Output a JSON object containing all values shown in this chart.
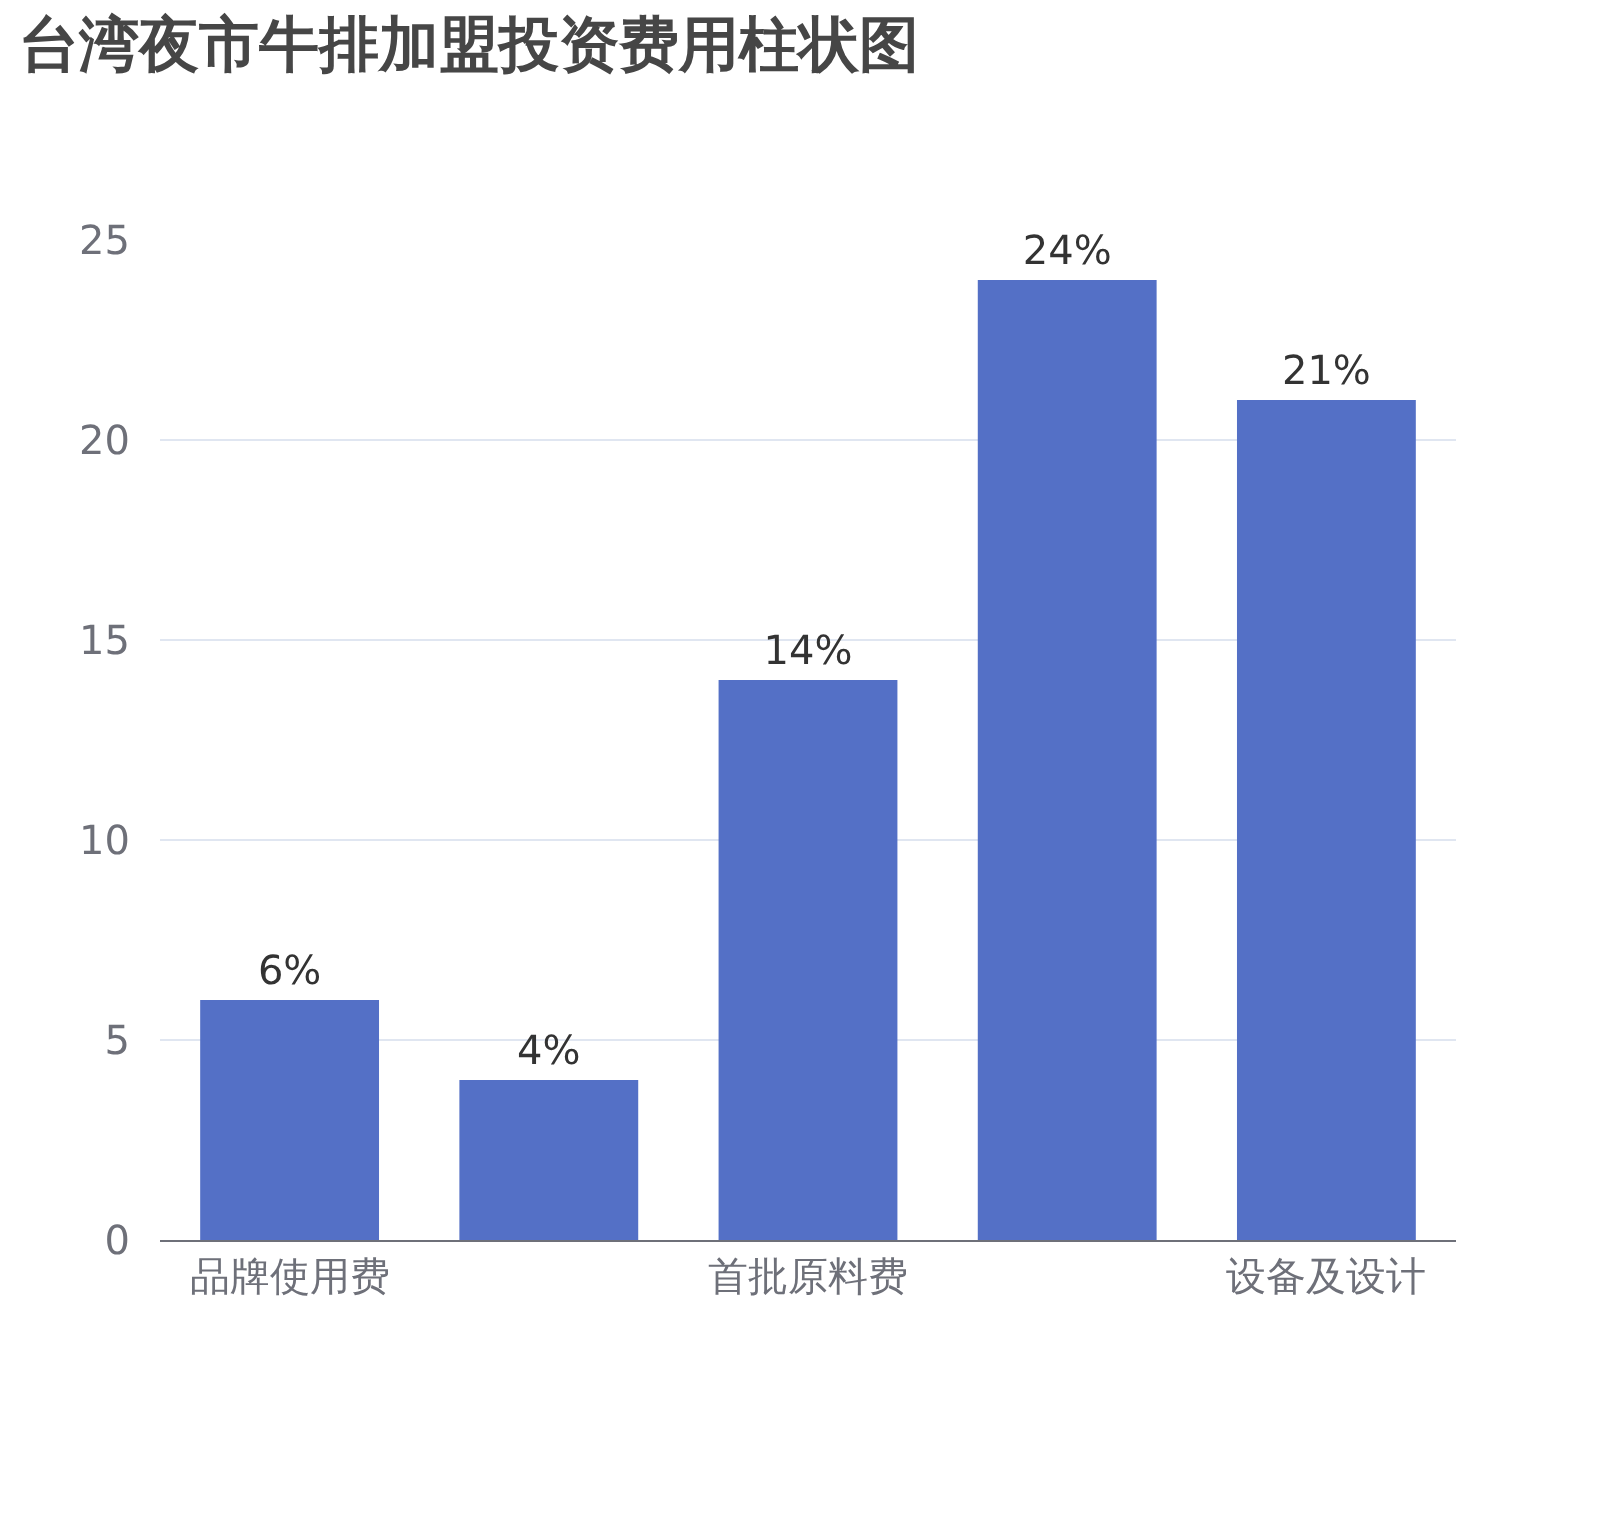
{
  "chart_data": {
    "type": "bar",
    "title": "台湾夜市牛排加盟投资费用柱状图",
    "categories": [
      "品牌使用费",
      null,
      "首批原料费",
      null,
      "设备及设计"
    ],
    "values": [
      6,
      4,
      14,
      24,
      21
    ],
    "value_labels": [
      "6%",
      "4%",
      "14%",
      "24%",
      "21%"
    ],
    "color": "#5470c6",
    "ylim": [
      0,
      25
    ],
    "yticks": [
      0,
      5,
      10,
      15,
      20,
      25
    ],
    "grid": "y"
  }
}
